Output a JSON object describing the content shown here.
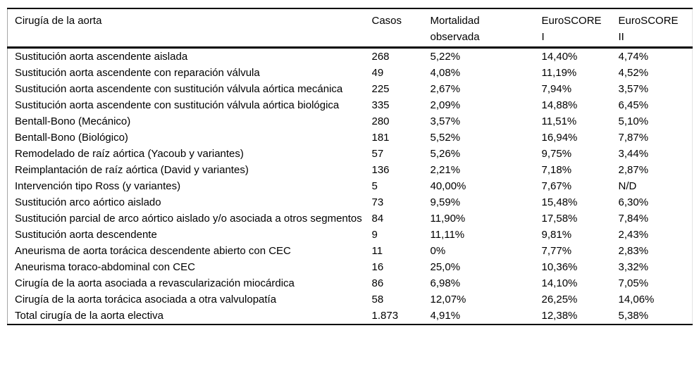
{
  "table": {
    "columns": [
      {
        "label": "Cirugía de la aorta"
      },
      {
        "label": "Casos"
      },
      {
        "label": "Mortalidad\nobservada"
      },
      {
        "label": "EuroSCORE\nI"
      },
      {
        "label": "EuroSCORE\nII"
      }
    ],
    "rows": [
      {
        "label": "Sustitución aorta ascendente aislada",
        "casos": "268",
        "mortalidad_observada": "5,22%",
        "euroscore_1": "14,40%",
        "euroscore_2": "4,74%"
      },
      {
        "label": "Sustitución aorta ascendente con reparación válvula",
        "casos": "49",
        "mortalidad_observada": "4,08%",
        "euroscore_1": "11,19%",
        "euroscore_2": "4,52%"
      },
      {
        "label": "Sustitución aorta ascendente con sustitución válvula aórtica mecánica",
        "casos": "225",
        "mortalidad_observada": "2,67%",
        "euroscore_1": "7,94%",
        "euroscore_2": "3,57%"
      },
      {
        "label": "Sustitución aorta ascendente con sustitución válvula aórtica biológica",
        "casos": "335",
        "mortalidad_observada": "2,09%",
        "euroscore_1": "14,88%",
        "euroscore_2": "6,45%"
      },
      {
        "label": "Bentall-Bono (Mecánico)",
        "casos": "280",
        "mortalidad_observada": "3,57%",
        "euroscore_1": "11,51%",
        "euroscore_2": "5,10%"
      },
      {
        "label": "Bentall-Bono (Biológico)",
        "casos": "181",
        "mortalidad_observada": "5,52%",
        "euroscore_1": "16,94%",
        "euroscore_2": "7,87%"
      },
      {
        "label": "Remodelado de raíz aórtica (Yacoub y variantes)",
        "casos": "57",
        "mortalidad_observada": "5,26%",
        "euroscore_1": "9,75%",
        "euroscore_2": "3,44%"
      },
      {
        "label": "Reimplantación de raíz aórtica (David y variantes)",
        "casos": "136",
        "mortalidad_observada": "2,21%",
        "euroscore_1": "7,18%",
        "euroscore_2": "2,87%"
      },
      {
        "label": "Intervención tipo Ross (y variantes)",
        "casos": "5",
        "mortalidad_observada": "40,00%",
        "euroscore_1": "7,67%",
        "euroscore_2": "N/D"
      },
      {
        "label": "Sustitución arco aórtico aislado",
        "casos": "73",
        "mortalidad_observada": "9,59%",
        "euroscore_1": "15,48%",
        "euroscore_2": "6,30%"
      },
      {
        "label": "Sustitución parcial de arco aórtico aislado y/o asociada a otros segmentos",
        "casos": "84",
        "mortalidad_observada": "11,90%",
        "euroscore_1": "17,58%",
        "euroscore_2": "7,84%"
      },
      {
        "label": "Sustitución aorta descendente",
        "casos": "9",
        "mortalidad_observada": "11,11%",
        "euroscore_1": "9,81%",
        "euroscore_2": "2,43%"
      },
      {
        "label": "Aneurisma de aorta torácica descendente abierto con CEC",
        "casos": "11",
        "mortalidad_observada": "0%",
        "euroscore_1": "7,77%",
        "euroscore_2": "2,83%"
      },
      {
        "label": "Aneurisma toraco-abdominal con CEC",
        "casos": "16",
        "mortalidad_observada": "25,0%",
        "euroscore_1": "10,36%",
        "euroscore_2": "3,32%"
      },
      {
        "label": "Cirugía de la aorta asociada a revascularización miocárdica",
        "casos": "86",
        "mortalidad_observada": "6,98%",
        "euroscore_1": "14,10%",
        "euroscore_2": "7,05%"
      },
      {
        "label": "Cirugía de la aorta torácica asociada a otra valvulopatía",
        "casos": "58",
        "mortalidad_observada": "12,07%",
        "euroscore_1": "26,25%",
        "euroscore_2": "14,06%"
      },
      {
        "label": "Total cirugía de la aorta electiva",
        "casos": "1.873",
        "mortalidad_observada": "4,91%",
        "euroscore_1": "12,38%",
        "euroscore_2": "5,38%"
      }
    ]
  },
  "colors": {
    "text": "#000000",
    "background": "#ffffff",
    "rule_strong": "#000000"
  }
}
